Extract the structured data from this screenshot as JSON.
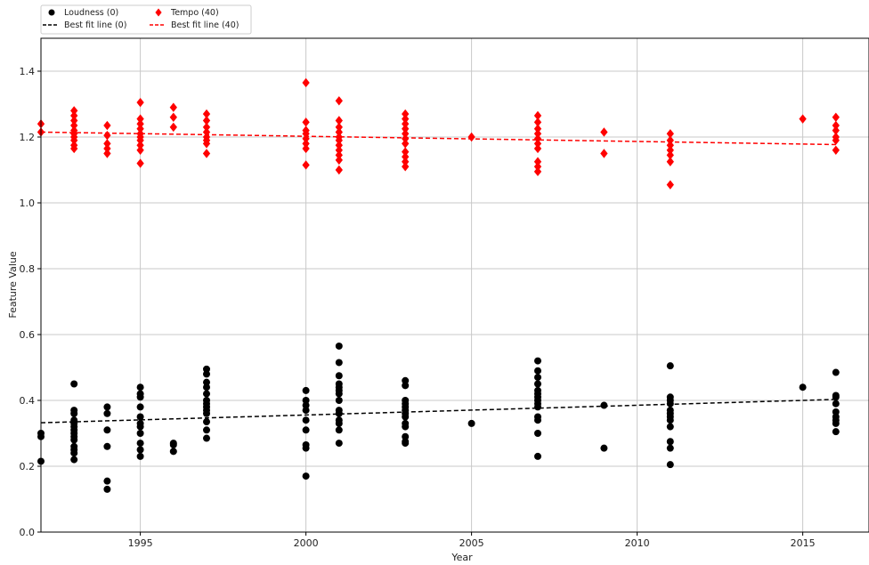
{
  "chart_data": {
    "type": "scatter",
    "title": "",
    "xlabel": "Year",
    "ylabel": "Feature Value",
    "xlim": [
      1992,
      2017
    ],
    "ylim": [
      0.0,
      1.5
    ],
    "x_ticks": [
      1995,
      2000,
      2005,
      2010,
      2015
    ],
    "y_ticks": [
      0.0,
      0.2,
      0.4,
      0.6,
      0.8,
      1.0,
      1.2,
      1.4
    ],
    "x_tick_labels": [
      "1995",
      "2000",
      "2005",
      "2010",
      "2015"
    ],
    "y_tick_labels": [
      "0.0",
      "0.2",
      "0.4",
      "0.6",
      "0.8",
      "1.0",
      "1.2",
      "1.4"
    ],
    "grid": true,
    "legend_position": "top-left, outside plot",
    "legend": [
      {
        "label": "Loudness (0)",
        "marker": "circle",
        "color": "#000000"
      },
      {
        "label": "Tempo (40)",
        "marker": "diamond",
        "color": "#ff0000"
      },
      {
        "label": "Best fit line (0)",
        "line": "dashed",
        "color": "#000000"
      },
      {
        "label": "Best fit line (40)",
        "line": "dashed",
        "color": "#ff0000"
      }
    ],
    "series": [
      {
        "name": "Loudness (0)",
        "kind": "scatter",
        "marker": "circle",
        "color": "#000000",
        "points": [
          [
            1992,
            0.215
          ],
          [
            1992,
            0.29
          ],
          [
            1992,
            0.3
          ],
          [
            1993,
            0.45
          ],
          [
            1993,
            0.37
          ],
          [
            1993,
            0.36
          ],
          [
            1993,
            0.34
          ],
          [
            1993,
            0.33
          ],
          [
            1993,
            0.32
          ],
          [
            1993,
            0.31
          ],
          [
            1993,
            0.3
          ],
          [
            1993,
            0.29
          ],
          [
            1993,
            0.28
          ],
          [
            1993,
            0.26
          ],
          [
            1993,
            0.25
          ],
          [
            1993,
            0.24
          ],
          [
            1993,
            0.22
          ],
          [
            1994,
            0.38
          ],
          [
            1994,
            0.36
          ],
          [
            1994,
            0.31
          ],
          [
            1994,
            0.26
          ],
          [
            1994,
            0.155
          ],
          [
            1994,
            0.13
          ],
          [
            1995,
            0.44
          ],
          [
            1995,
            0.42
          ],
          [
            1995,
            0.41
          ],
          [
            1995,
            0.38
          ],
          [
            1995,
            0.35
          ],
          [
            1995,
            0.33
          ],
          [
            1995,
            0.32
          ],
          [
            1995,
            0.3
          ],
          [
            1995,
            0.27
          ],
          [
            1995,
            0.25
          ],
          [
            1995,
            0.23
          ],
          [
            1996,
            0.27
          ],
          [
            1996,
            0.265
          ],
          [
            1996,
            0.245
          ],
          [
            1997,
            0.495
          ],
          [
            1997,
            0.48
          ],
          [
            1997,
            0.455
          ],
          [
            1997,
            0.44
          ],
          [
            1997,
            0.42
          ],
          [
            1997,
            0.4
          ],
          [
            1997,
            0.39
          ],
          [
            1997,
            0.38
          ],
          [
            1997,
            0.37
          ],
          [
            1997,
            0.36
          ],
          [
            1997,
            0.335
          ],
          [
            1997,
            0.31
          ],
          [
            1997,
            0.285
          ],
          [
            2000,
            0.43
          ],
          [
            2000,
            0.4
          ],
          [
            2000,
            0.385
          ],
          [
            2000,
            0.37
          ],
          [
            2000,
            0.34
          ],
          [
            2000,
            0.31
          ],
          [
            2000,
            0.265
          ],
          [
            2000,
            0.255
          ],
          [
            2000,
            0.17
          ],
          [
            2001,
            0.565
          ],
          [
            2001,
            0.515
          ],
          [
            2001,
            0.475
          ],
          [
            2001,
            0.45
          ],
          [
            2001,
            0.44
          ],
          [
            2001,
            0.43
          ],
          [
            2001,
            0.42
          ],
          [
            2001,
            0.4
          ],
          [
            2001,
            0.37
          ],
          [
            2001,
            0.36
          ],
          [
            2001,
            0.34
          ],
          [
            2001,
            0.33
          ],
          [
            2001,
            0.31
          ],
          [
            2001,
            0.27
          ],
          [
            2003,
            0.46
          ],
          [
            2003,
            0.445
          ],
          [
            2003,
            0.4
          ],
          [
            2003,
            0.39
          ],
          [
            2003,
            0.38
          ],
          [
            2003,
            0.37
          ],
          [
            2003,
            0.36
          ],
          [
            2003,
            0.35
          ],
          [
            2003,
            0.33
          ],
          [
            2003,
            0.32
          ],
          [
            2003,
            0.29
          ],
          [
            2003,
            0.275
          ],
          [
            2003,
            0.27
          ],
          [
            2005,
            0.33
          ],
          [
            2007,
            0.52
          ],
          [
            2007,
            0.49
          ],
          [
            2007,
            0.47
          ],
          [
            2007,
            0.45
          ],
          [
            2007,
            0.43
          ],
          [
            2007,
            0.42
          ],
          [
            2007,
            0.41
          ],
          [
            2007,
            0.4
          ],
          [
            2007,
            0.39
          ],
          [
            2007,
            0.38
          ],
          [
            2007,
            0.35
          ],
          [
            2007,
            0.34
          ],
          [
            2007,
            0.3
          ],
          [
            2007,
            0.23
          ],
          [
            2009,
            0.385
          ],
          [
            2009,
            0.255
          ],
          [
            2011,
            0.505
          ],
          [
            2011,
            0.41
          ],
          [
            2011,
            0.4
          ],
          [
            2011,
            0.39
          ],
          [
            2011,
            0.37
          ],
          [
            2011,
            0.36
          ],
          [
            2011,
            0.35
          ],
          [
            2011,
            0.34
          ],
          [
            2011,
            0.32
          ],
          [
            2011,
            0.275
          ],
          [
            2011,
            0.255
          ],
          [
            2011,
            0.205
          ],
          [
            2015,
            0.44
          ],
          [
            2016,
            0.485
          ],
          [
            2016,
            0.415
          ],
          [
            2016,
            0.41
          ],
          [
            2016,
            0.39
          ],
          [
            2016,
            0.365
          ],
          [
            2016,
            0.35
          ],
          [
            2016,
            0.34
          ],
          [
            2016,
            0.33
          ],
          [
            2016,
            0.305
          ]
        ]
      },
      {
        "name": "Tempo (40)",
        "kind": "scatter",
        "marker": "diamond",
        "color": "#ff0000",
        "points": [
          [
            1992,
            1.24
          ],
          [
            1992,
            1.215
          ],
          [
            1993,
            1.28
          ],
          [
            1993,
            1.265
          ],
          [
            1993,
            1.25
          ],
          [
            1993,
            1.235
          ],
          [
            1993,
            1.22
          ],
          [
            1993,
            1.21
          ],
          [
            1993,
            1.2
          ],
          [
            1993,
            1.19
          ],
          [
            1993,
            1.175
          ],
          [
            1993,
            1.165
          ],
          [
            1994,
            1.235
          ],
          [
            1994,
            1.205
          ],
          [
            1994,
            1.18
          ],
          [
            1994,
            1.165
          ],
          [
            1994,
            1.15
          ],
          [
            1995,
            1.305
          ],
          [
            1995,
            1.255
          ],
          [
            1995,
            1.24
          ],
          [
            1995,
            1.225
          ],
          [
            1995,
            1.21
          ],
          [
            1995,
            1.2
          ],
          [
            1995,
            1.19
          ],
          [
            1995,
            1.175
          ],
          [
            1995,
            1.16
          ],
          [
            1995,
            1.12
          ],
          [
            1996,
            1.29
          ],
          [
            1996,
            1.26
          ],
          [
            1996,
            1.23
          ],
          [
            1997,
            1.27
          ],
          [
            1997,
            1.25
          ],
          [
            1997,
            1.23
          ],
          [
            1997,
            1.215
          ],
          [
            1997,
            1.2
          ],
          [
            1997,
            1.19
          ],
          [
            1997,
            1.18
          ],
          [
            1997,
            1.15
          ],
          [
            2000,
            1.365
          ],
          [
            2000,
            1.245
          ],
          [
            2000,
            1.22
          ],
          [
            2000,
            1.21
          ],
          [
            2000,
            1.195
          ],
          [
            2000,
            1.18
          ],
          [
            2000,
            1.165
          ],
          [
            2000,
            1.115
          ],
          [
            2001,
            1.31
          ],
          [
            2001,
            1.25
          ],
          [
            2001,
            1.23
          ],
          [
            2001,
            1.215
          ],
          [
            2001,
            1.2
          ],
          [
            2001,
            1.19
          ],
          [
            2001,
            1.175
          ],
          [
            2001,
            1.16
          ],
          [
            2001,
            1.145
          ],
          [
            2001,
            1.13
          ],
          [
            2001,
            1.1
          ],
          [
            2003,
            1.27
          ],
          [
            2003,
            1.255
          ],
          [
            2003,
            1.24
          ],
          [
            2003,
            1.225
          ],
          [
            2003,
            1.21
          ],
          [
            2003,
            1.195
          ],
          [
            2003,
            1.18
          ],
          [
            2003,
            1.155
          ],
          [
            2003,
            1.14
          ],
          [
            2003,
            1.125
          ],
          [
            2003,
            1.11
          ],
          [
            2005,
            1.2
          ],
          [
            2007,
            1.265
          ],
          [
            2007,
            1.245
          ],
          [
            2007,
            1.225
          ],
          [
            2007,
            1.21
          ],
          [
            2007,
            1.195
          ],
          [
            2007,
            1.18
          ],
          [
            2007,
            1.165
          ],
          [
            2007,
            1.125
          ],
          [
            2007,
            1.11
          ],
          [
            2007,
            1.095
          ],
          [
            2009,
            1.215
          ],
          [
            2009,
            1.15
          ],
          [
            2011,
            1.21
          ],
          [
            2011,
            1.19
          ],
          [
            2011,
            1.175
          ],
          [
            2011,
            1.16
          ],
          [
            2011,
            1.145
          ],
          [
            2011,
            1.125
          ],
          [
            2011,
            1.055
          ],
          [
            2015,
            1.255
          ],
          [
            2016,
            1.26
          ],
          [
            2016,
            1.235
          ],
          [
            2016,
            1.22
          ],
          [
            2016,
            1.2
          ],
          [
            2016,
            1.19
          ],
          [
            2016,
            1.16
          ]
        ]
      },
      {
        "name": "Best fit line (0)",
        "kind": "line",
        "style": "dashed",
        "color": "#000000",
        "points": [
          [
            1992,
            0.332
          ],
          [
            2016,
            0.403
          ]
        ]
      },
      {
        "name": "Best fit line (40)",
        "kind": "line",
        "style": "dashed",
        "color": "#ff0000",
        "points": [
          [
            1992,
            1.215
          ],
          [
            2016,
            1.177
          ]
        ]
      }
    ]
  }
}
